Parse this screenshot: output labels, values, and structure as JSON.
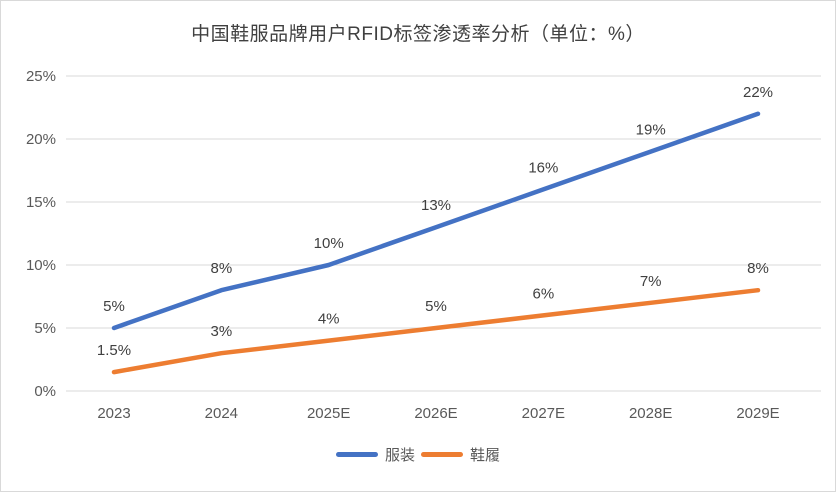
{
  "chart_data": {
    "type": "line",
    "title": "中国鞋服品牌用户RFID标签渗透率分析（单位：%）",
    "categories": [
      "2023",
      "2024",
      "2025E",
      "2026E",
      "2027E",
      "2028E",
      "2029E"
    ],
    "series": [
      {
        "name": "服装",
        "values": [
          5,
          8,
          10,
          13,
          16,
          19,
          22
        ],
        "labels": [
          "5%",
          "8%",
          "10%",
          "13%",
          "16%",
          "19%",
          "22%"
        ],
        "color": "#4472C4"
      },
      {
        "name": "鞋履",
        "values": [
          1.5,
          3,
          4,
          5,
          6,
          7,
          8
        ],
        "labels": [
          "1.5%",
          "3%",
          "4%",
          "5%",
          "6%",
          "7%",
          "8%"
        ],
        "color": "#ED7D31"
      }
    ],
    "xlabel": "",
    "ylabel": "",
    "ylim": [
      0,
      25
    ],
    "ytick_step": 5,
    "ytick_labels": [
      "0%",
      "5%",
      "10%",
      "15%",
      "20%",
      "25%"
    ],
    "grid": true,
    "legend_position": "bottom",
    "colors": {
      "gridline": "#D9D9D9",
      "tick_text": "#595959",
      "data_label_text": "#404040",
      "title_text": "#404040",
      "background": "#FFFFFF",
      "border": "#D9D9D9"
    }
  }
}
